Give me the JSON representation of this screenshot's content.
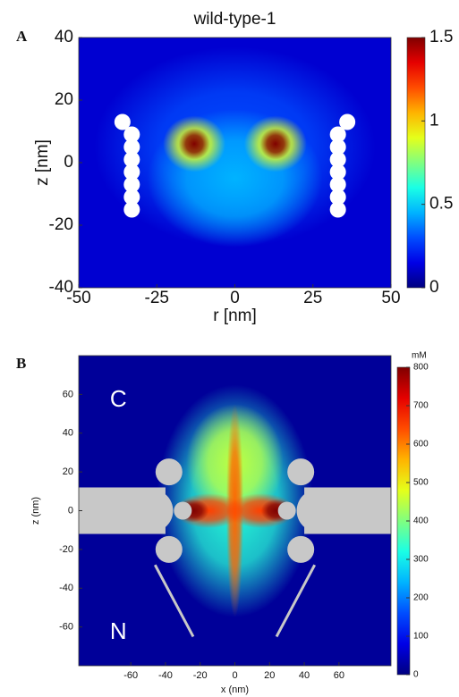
{
  "chart_data": [
    {
      "type": "heatmap",
      "panel_label": "A",
      "title": "wild-type-1",
      "x_label": "r [nm]",
      "y_label": "z [nm]",
      "xlim": [
        -50,
        50
      ],
      "ylim": [
        -40,
        40
      ],
      "xticks": [
        -50,
        -25,
        0,
        25,
        50
      ],
      "yticks": [
        -40,
        -20,
        0,
        20,
        40
      ],
      "colorbar": {
        "lim": [
          0,
          1.5
        ],
        "ticks": [
          0,
          0.5,
          1,
          1.5
        ]
      },
      "background": 0.12,
      "hotspots": [
        {
          "x": 0,
          "z": 5,
          "value": 0.3,
          "sx": 45,
          "sz": 32
        },
        {
          "x": 0,
          "z": -5,
          "value": 0.45,
          "sx": 28,
          "sz": 22
        },
        {
          "x": -13,
          "z": 6,
          "value": 0.9,
          "sx": 10,
          "sz": 9
        },
        {
          "x": 13,
          "z": 6,
          "value": 0.9,
          "sx": 10,
          "sz": 9
        },
        {
          "x": -13,
          "z": 6,
          "value": 1.5,
          "sx": 5,
          "sz": 5
        },
        {
          "x": 13,
          "z": 6,
          "value": 1.5,
          "sx": 5,
          "sz": 5
        }
      ]
    },
    {
      "type": "heatmap",
      "panel_label": "B",
      "x_label": "x (nm)",
      "y_label": "z (nm)",
      "xlim": [
        -90,
        90
      ],
      "ylim": [
        -80,
        80
      ],
      "xticks": [
        -60,
        -40,
        -20,
        0,
        20,
        40,
        60
      ],
      "yticks": [
        -60,
        -40,
        -20,
        0,
        20,
        40,
        60
      ],
      "colorbar": {
        "lim": [
          0,
          800
        ],
        "ticks": [
          0,
          100,
          200,
          300,
          400,
          500,
          600,
          700,
          800
        ],
        "label": "mM"
      },
      "background": 20,
      "annotations": [
        "C",
        "N"
      ],
      "hotspots": [
        {
          "x": 0,
          "z": 5,
          "value": 330,
          "sx": 45,
          "sz": 60
        },
        {
          "x": 0,
          "z": 25,
          "value": 450,
          "sx": 28,
          "sz": 30
        },
        {
          "x": 0,
          "z": 0,
          "value": 620,
          "sx": 5,
          "sz": 55
        },
        {
          "x": -15,
          "z": 0,
          "value": 650,
          "sx": 20,
          "sz": 9
        },
        {
          "x": 15,
          "z": 0,
          "value": 650,
          "sx": 20,
          "sz": 9
        },
        {
          "x": -24,
          "z": 0,
          "value": 800,
          "sx": 9,
          "sz": 6
        },
        {
          "x": 24,
          "z": 0,
          "value": 800,
          "sx": 9,
          "sz": 6
        }
      ]
    }
  ]
}
